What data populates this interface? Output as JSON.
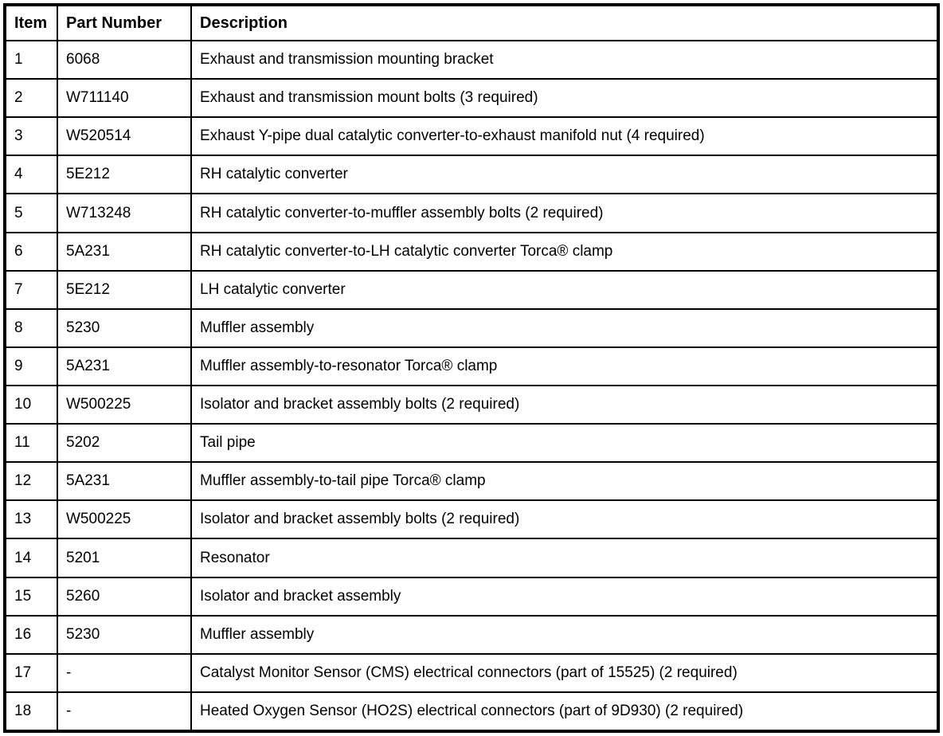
{
  "table": {
    "headers": {
      "item": "Item",
      "part_number": "Part Number",
      "description": "Description"
    },
    "rows": [
      {
        "item": "1",
        "part_number": "6068",
        "description": "Exhaust and transmission mounting bracket"
      },
      {
        "item": "2",
        "part_number": "W711140",
        "description": "Exhaust and transmission mount bolts (3 required)"
      },
      {
        "item": "3",
        "part_number": "W520514",
        "description": "Exhaust Y-pipe dual catalytic converter-to-exhaust manifold nut (4 required)"
      },
      {
        "item": "4",
        "part_number": "5E212",
        "description": "RH catalytic converter"
      },
      {
        "item": "5",
        "part_number": "W713248",
        "description": "RH catalytic converter-to-muffler assembly bolts (2 required)"
      },
      {
        "item": "6",
        "part_number": "5A231",
        "description": "RH catalytic converter-to-LH catalytic converter Torca® clamp"
      },
      {
        "item": "7",
        "part_number": "5E212",
        "description": "LH catalytic converter"
      },
      {
        "item": "8",
        "part_number": "5230",
        "description": "Muffler assembly"
      },
      {
        "item": "9",
        "part_number": "5A231",
        "description": "Muffler assembly-to-resonator Torca® clamp"
      },
      {
        "item": "10",
        "part_number": "W500225",
        "description": "Isolator and bracket assembly bolts (2 required)"
      },
      {
        "item": "11",
        "part_number": "5202",
        "description": "Tail pipe"
      },
      {
        "item": "12",
        "part_number": "5A231",
        "description": "Muffler assembly-to-tail pipe Torca® clamp"
      },
      {
        "item": "13",
        "part_number": "W500225",
        "description": "Isolator and bracket assembly bolts (2 required)"
      },
      {
        "item": "14",
        "part_number": "5201",
        "description": "Resonator"
      },
      {
        "item": "15",
        "part_number": "5260",
        "description": "Isolator and bracket assembly"
      },
      {
        "item": "16",
        "part_number": "5230",
        "description": "Muffler assembly"
      },
      {
        "item": "17",
        "part_number": "-",
        "description": "Catalyst Monitor Sensor (CMS) electrical connectors (part of 15525) (2 required)"
      },
      {
        "item": "18",
        "part_number": "-",
        "description": "Heated Oxygen Sensor (HO2S) electrical connectors (part of 9D930) (2 required)"
      }
    ]
  }
}
